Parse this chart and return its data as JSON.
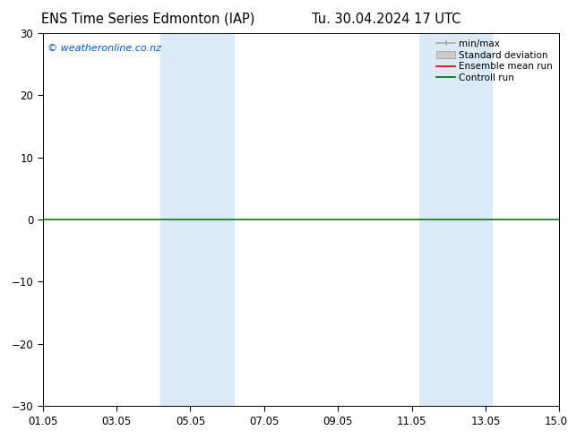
{
  "title_left": "ENS Time Series Edmonton (IAP)",
  "title_right": "Tu. 30.04.2024 17 UTC",
  "ylim": [
    -30,
    30
  ],
  "yticks": [
    -30,
    -20,
    -10,
    0,
    10,
    20,
    30
  ],
  "xlim": [
    0,
    14
  ],
  "xtick_labels": [
    "01.05",
    "03.05",
    "05.05",
    "07.05",
    "09.05",
    "11.05",
    "13.05",
    "15.05"
  ],
  "xtick_positions": [
    0,
    2,
    4,
    6,
    8,
    10,
    12,
    14
  ],
  "shaded_bands": [
    {
      "xmin": 3.2,
      "xmax": 5.2,
      "color": "#daeaf7"
    },
    {
      "xmin": 10.2,
      "xmax": 12.2,
      "color": "#daeaf7"
    }
  ],
  "zero_line_color": "#1a6e1a",
  "watermark": "© weatheronline.co.nz",
  "watermark_color": "#0055cc",
  "background_color": "#ffffff",
  "plot_bg_color": "#ffffff",
  "legend_items": [
    {
      "label": "min/max",
      "color": "#aaaaaa",
      "style": "minmax"
    },
    {
      "label": "Standard deviation",
      "color": "#cccccc",
      "style": "stddev"
    },
    {
      "label": "Ensemble mean run",
      "color": "#cc0000",
      "style": "line"
    },
    {
      "label": "Controll run",
      "color": "#006600",
      "style": "line"
    }
  ],
  "title_fontsize": 10.5,
  "tick_fontsize": 8.5,
  "legend_fontsize": 7.5,
  "watermark_fontsize": 8
}
